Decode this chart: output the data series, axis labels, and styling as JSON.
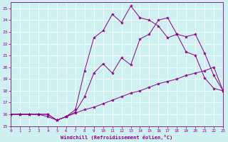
{
  "xlabel": "Windchill (Refroidissement éolien,°C)",
  "xlim": [
    0,
    23
  ],
  "ylim": [
    15,
    25.5
  ],
  "xticks": [
    0,
    1,
    2,
    3,
    4,
    5,
    6,
    7,
    8,
    9,
    10,
    11,
    12,
    13,
    14,
    15,
    16,
    17,
    18,
    19,
    20,
    21,
    22,
    23
  ],
  "yticks": [
    15,
    16,
    17,
    18,
    19,
    20,
    21,
    22,
    23,
    24,
    25
  ],
  "bg_color": "#cff0f0",
  "line_color": "#880088",
  "line1_x": [
    0,
    1,
    2,
    3,
    4,
    5,
    6,
    7,
    8,
    9,
    10,
    11,
    12,
    13,
    14,
    15,
    16,
    17,
    18,
    19,
    20,
    21,
    22,
    23
  ],
  "line1_y": [
    16.0,
    16.0,
    16.0,
    16.0,
    16.0,
    15.5,
    15.8,
    16.1,
    16.4,
    16.6,
    16.9,
    17.2,
    17.5,
    17.8,
    18.0,
    18.3,
    18.6,
    18.8,
    19.0,
    19.3,
    19.5,
    19.7,
    20.0,
    18.0
  ],
  "line2_x": [
    0,
    1,
    2,
    3,
    4,
    5,
    6,
    7,
    8,
    9,
    10,
    11,
    12,
    13,
    14,
    15,
    16,
    17,
    18,
    19,
    20,
    21,
    22,
    23
  ],
  "line2_y": [
    16.0,
    16.0,
    16.0,
    16.0,
    16.0,
    15.5,
    15.8,
    16.2,
    17.5,
    19.5,
    20.3,
    19.5,
    20.8,
    20.2,
    22.4,
    22.8,
    24.0,
    24.2,
    22.8,
    21.3,
    21.0,
    19.1,
    18.2,
    18.0
  ],
  "line3_x": [
    0,
    1,
    2,
    3,
    4,
    5,
    6,
    7,
    8,
    9,
    10,
    11,
    12,
    13,
    14,
    15,
    16,
    17,
    18,
    19,
    20,
    21,
    22,
    23
  ],
  "line3_y": [
    16.0,
    16.0,
    16.0,
    16.0,
    15.8,
    15.5,
    15.8,
    16.4,
    19.7,
    22.5,
    23.1,
    24.5,
    23.8,
    25.2,
    24.2,
    24.0,
    23.5,
    22.5,
    22.8,
    22.6,
    22.8,
    21.2,
    19.3,
    18.0
  ]
}
